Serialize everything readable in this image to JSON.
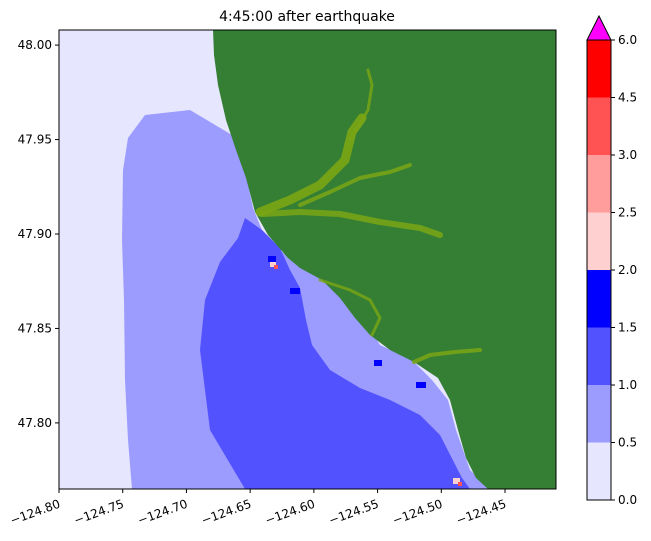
{
  "chart_data": {
    "type": "heatmap",
    "title": "4:45:00 after earthquake",
    "xlabel": "",
    "ylabel": "",
    "xlim": [
      -124.8,
      -124.41
    ],
    "ylim": [
      47.765,
      48.008
    ],
    "x_ticks": [
      -124.8,
      -124.75,
      -124.7,
      -124.65,
      -124.6,
      -124.55,
      -124.5,
      -124.45
    ],
    "x_tick_labels": [
      "−124.80",
      "−124.75",
      "−124.70",
      "−124.65",
      "−124.60",
      "−124.55",
      "−124.50",
      "−124.45"
    ],
    "y_ticks": [
      47.8,
      47.85,
      47.9,
      47.95,
      48.0
    ],
    "y_tick_labels": [
      "47.80",
      "47.85",
      "47.90",
      "47.95",
      "48.00"
    ],
    "land_color": "#357f35",
    "river_color": "#7aa614",
    "colorbar": {
      "extend": "max",
      "over_color": "#ff00ff",
      "levels": [
        0.0,
        0.5,
        1.0,
        1.5,
        2.0,
        2.5,
        3.0,
        4.5,
        6.0
      ],
      "level_labels": [
        "0.0",
        "0.5",
        "1.0",
        "1.5",
        "2.0",
        "2.5",
        "3.0",
        "4.5",
        "6.0"
      ],
      "colors": [
        "#e6e6ff",
        "#9c9cff",
        "#5252ff",
        "#0000ff",
        "#ffd0d0",
        "#ff9c9c",
        "#ff5252",
        "#ff0000"
      ]
    }
  }
}
